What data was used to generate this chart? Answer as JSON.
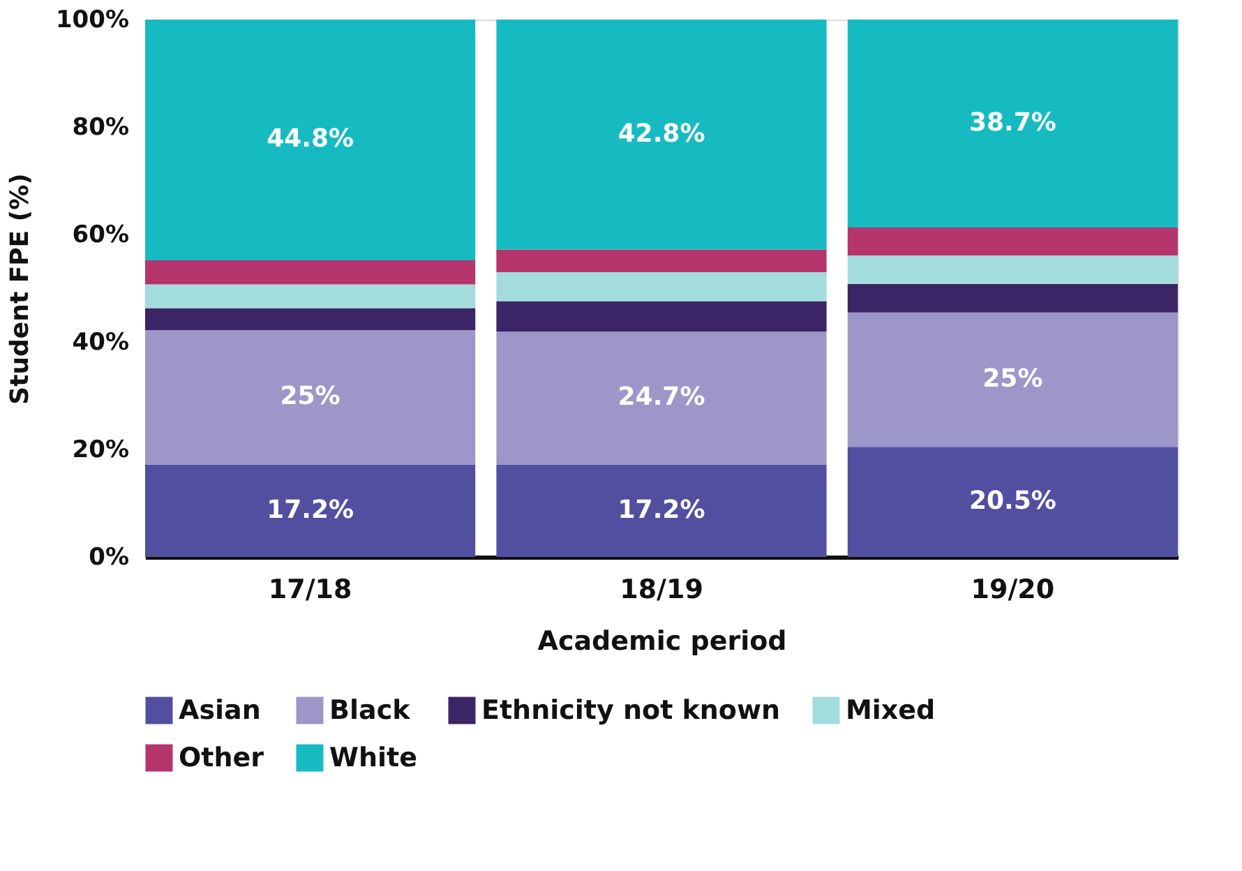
{
  "chart_data": {
    "type": "bar",
    "stacked": true,
    "xlabel": "Academic period",
    "ylabel": "Student FPE (%)",
    "categories": [
      "17/18",
      "18/19",
      "19/20"
    ],
    "series": [
      {
        "name": "Asian",
        "color": "#524fa1",
        "values": [
          17.2,
          17.2,
          20.5
        ],
        "value_labels": [
          "17.2%",
          "17.2%",
          "20.5%"
        ]
      },
      {
        "name": "Black",
        "color": "#9d96c9",
        "values": [
          25,
          24.7,
          25
        ],
        "value_labels": [
          "25%",
          "24.7%",
          "25%"
        ]
      },
      {
        "name": "Ethnicity not known",
        "color": "#3b2566",
        "values": [
          4.1,
          5.7,
          5.3
        ]
      },
      {
        "name": "Mixed",
        "color": "#a3dcdd",
        "values": [
          4.4,
          5.4,
          5.3
        ]
      },
      {
        "name": "Other",
        "color": "#b5346b",
        "values": [
          4.5,
          4.2,
          5.2
        ]
      },
      {
        "name": "White",
        "color": "#16bbc1",
        "values": [
          44.8,
          42.8,
          38.7
        ],
        "value_labels": [
          "44.8%",
          "42.8%",
          "38.7%"
        ]
      }
    ],
    "ylim": [
      0,
      100
    ],
    "yticks": [
      {
        "value": 0,
        "label": "0%"
      },
      {
        "value": 20,
        "label": "20%"
      },
      {
        "value": 40,
        "label": "40%"
      },
      {
        "value": 60,
        "label": "60%"
      },
      {
        "value": 80,
        "label": "80%"
      },
      {
        "value": 100,
        "label": "100%"
      }
    ],
    "grid": false,
    "legend": "bottom"
  }
}
